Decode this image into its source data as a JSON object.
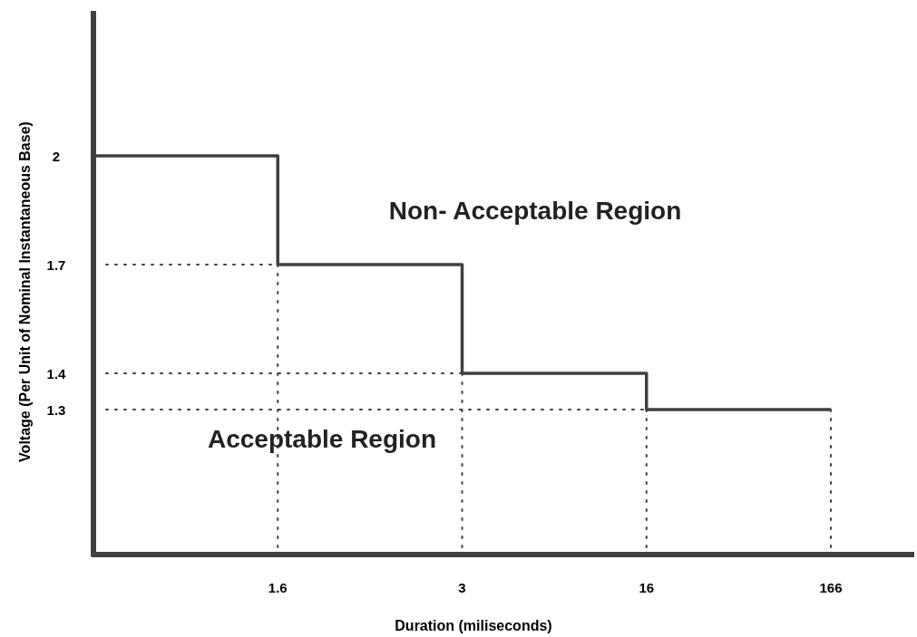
{
  "chart_data": {
    "type": "step",
    "xlabel": "Duration (miliseconds)",
    "ylabel": "Voltage (Per Unit of Nominal Instantaneous Base)",
    "categories": [
      null,
      "1.6",
      "3",
      "16",
      "166"
    ],
    "series": [
      {
        "color": "#404040",
        "values": [
          2,
          1.7,
          1.4,
          1.3,
          1.3
        ]
      }
    ],
    "ylim": [
      0.9,
      2.4
    ],
    "yticks": [
      1.3,
      1.4,
      1.7,
      2
    ],
    "grid": false,
    "line_style": "solid",
    "ref_lines": [
      {
        "axis": "y",
        "value": 1.7,
        "color": "#404040",
        "line_style": "dotted"
      },
      {
        "axis": "y",
        "value": 1.4,
        "color": "#404040",
        "line_style": "dotted"
      },
      {
        "axis": "y",
        "value": 1.3,
        "color": "#404040",
        "line_style": "dotted"
      },
      {
        "axis": "x",
        "value": "1.6",
        "color": "#404040",
        "line_style": "dotted"
      },
      {
        "axis": "x",
        "value": "3",
        "color": "#404040",
        "line_style": "dotted"
      },
      {
        "axis": "x",
        "value": "16",
        "color": "#404040",
        "line_style": "dotted"
      },
      {
        "axis": "x",
        "value": "166",
        "color": "#404040",
        "line_style": "dotted"
      }
    ],
    "annotations": [
      "Non- Acceptable Region",
      "Acceptable Region"
    ]
  }
}
